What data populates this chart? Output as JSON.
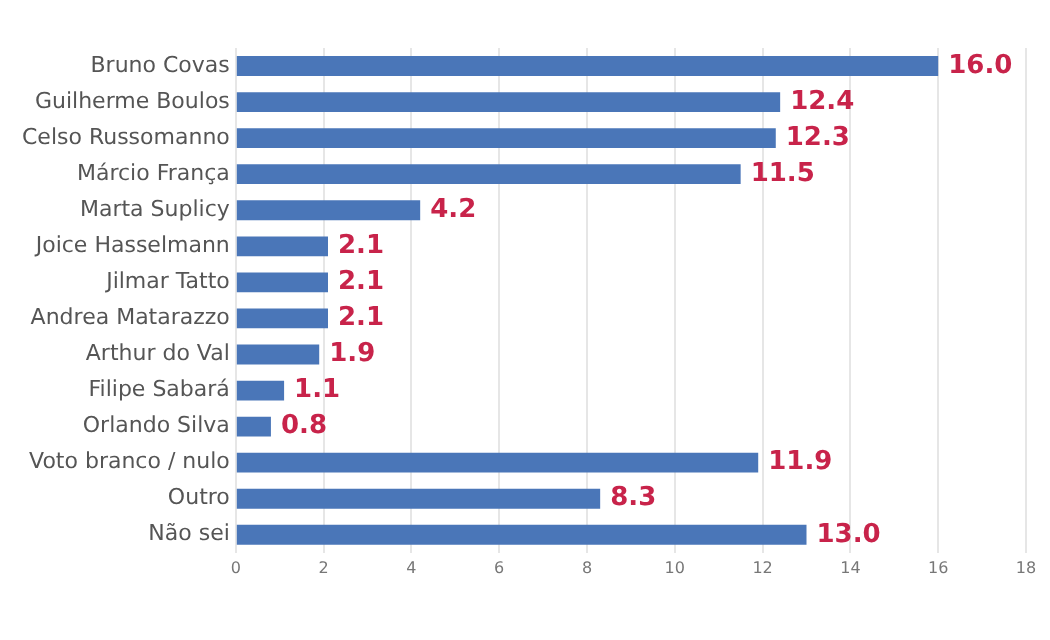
{
  "chart_data": {
    "type": "bar",
    "orientation": "horizontal",
    "categories": [
      "Bruno Covas",
      "Guilherme Boulos",
      "Celso Russomanno",
      "Márcio França",
      "Marta Suplicy",
      "Joice Hasselmann",
      "Jilmar Tatto",
      "Andrea Matarazzo",
      "Arthur do Val",
      "Filipe Sabará",
      "Orlando Silva",
      "Voto branco / nulo",
      "Outro",
      "Não sei"
    ],
    "values": [
      16.0,
      12.4,
      12.3,
      11.5,
      4.2,
      2.1,
      2.1,
      2.1,
      1.9,
      1.1,
      0.8,
      11.9,
      8.3,
      13.0
    ],
    "value_labels": [
      "16.0",
      "12.4",
      "12.3",
      "11.5",
      "4.2",
      "2.1",
      "2.1",
      "2.1",
      "1.9",
      "1.1",
      "0.8",
      "11.9",
      "8.3",
      "13.0"
    ],
    "color": "#4a76b8",
    "xlim": [
      0,
      18
    ],
    "xticks": [
      0,
      2,
      4,
      6,
      8,
      10,
      12,
      14,
      16,
      18
    ],
    "grid": "x",
    "legend": false
  }
}
